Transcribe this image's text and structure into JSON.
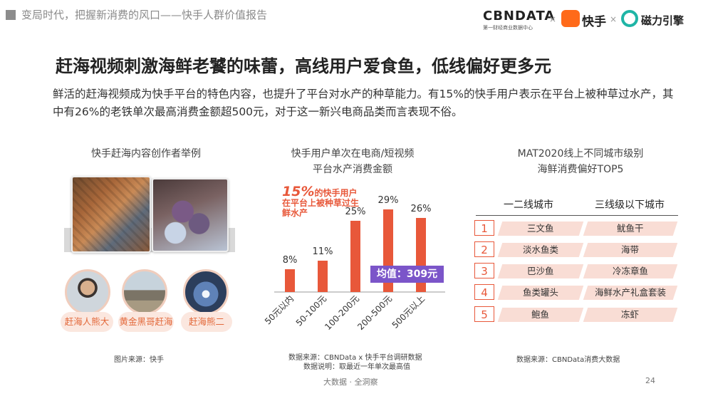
{
  "header": {
    "title": "变局时代，把握新消费的风口——快手人群价值报告",
    "brand_cbn": "CBNDATA",
    "brand_cbn_sub": "第一财经商业数据中心",
    "separator": "×",
    "brand_kuaishou": "快手",
    "brand_cili": "磁力引擎"
  },
  "headline": "赶海视频刺激海鲜老饕的味蕾，高线用户爱食鱼，低线偏好更多元",
  "intro": "鲜活的赶海视频成为快手平台的特色内容，也提升了平台对水产的种草能力。有15%的快手用户表示在平台上被种草过水产，其中有26%的老铁单次最高消费金额超500元，对于这一新兴电商品类而言表现不俗。",
  "section1": {
    "title": "快手赶海内容创作者举例",
    "creators": [
      "赶海人熊大",
      "黄金黑哥赶海",
      "赶海熊二"
    ],
    "source": "图片来源：快手"
  },
  "section2": {
    "title_line1": "快手用户单次在电商/短视频",
    "title_line2": "平台水产消费金额",
    "callout_big": "15%",
    "callout_text": "的快手用户在平台上被种草过生鲜水产",
    "mean_label": "均值：309元",
    "source_line1": "数据来源：CBNData x 快手平台调研数据",
    "source_line2": "数据说明：取最近一年单次最高值"
  },
  "chart_data": {
    "type": "bar",
    "categories": [
      "50元以内",
      "50-100元",
      "100-200元",
      "200-500元",
      "500元以上"
    ],
    "values": [
      8,
      11,
      25,
      29,
      26
    ],
    "value_labels": [
      "8%",
      "11%",
      "25%",
      "29%",
      "26%"
    ],
    "color": "#e8583a",
    "ylim": [
      0,
      32
    ]
  },
  "section3": {
    "title_line1": "MAT2020线上不同城市级别",
    "title_line2": "海鲜消费偏好TOP5",
    "col1": "一二线城市",
    "col2": "三线级以下城市",
    "rows": [
      {
        "rank": "1",
        "a": "三文鱼",
        "b": "鱿鱼干"
      },
      {
        "rank": "2",
        "a": "淡水鱼类",
        "b": "海带"
      },
      {
        "rank": "3",
        "a": "巴沙鱼",
        "b": "冷冻章鱼"
      },
      {
        "rank": "4",
        "a": "鱼类罐头",
        "b": "海鲜水产礼盒套装"
      },
      {
        "rank": "5",
        "a": "鲍鱼",
        "b": "冻虾"
      }
    ],
    "source": "数据来源：CBNData消费大数据"
  },
  "footer": {
    "text": "大数据 · 全洞察",
    "page": "24"
  }
}
